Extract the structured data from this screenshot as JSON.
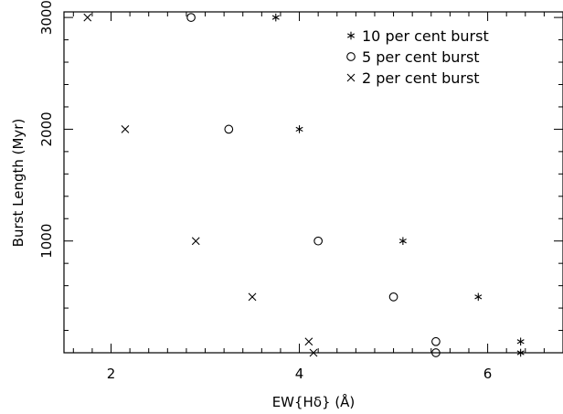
{
  "chart_data": {
    "type": "scatter",
    "xlabel": "EW{Hδ} (Å)",
    "ylabel": "Burst Length (Myr)",
    "xlim": [
      1.5,
      6.8
    ],
    "ylim": [
      0,
      3050
    ],
    "x_ticks_major": [
      2,
      4,
      6
    ],
    "x_ticks_minor_step": 0.2,
    "y_ticks_major": [
      1000,
      2000,
      3000
    ],
    "y_ticks_minor_step": 200,
    "grid": false,
    "legend_position": "top-right",
    "series": [
      {
        "name": "10 per cent burst",
        "marker": "asterisk",
        "points": [
          {
            "x": 3.75,
            "y": 3000
          },
          {
            "x": 4.0,
            "y": 2000
          },
          {
            "x": 5.1,
            "y": 1000
          },
          {
            "x": 5.9,
            "y": 500
          },
          {
            "x": 6.35,
            "y": 100
          },
          {
            "x": 6.35,
            "y": 0
          }
        ]
      },
      {
        "name": "5 per cent burst",
        "marker": "circle",
        "points": [
          {
            "x": 2.85,
            "y": 3000
          },
          {
            "x": 3.25,
            "y": 2000
          },
          {
            "x": 4.2,
            "y": 1000
          },
          {
            "x": 5.0,
            "y": 500
          },
          {
            "x": 5.45,
            "y": 100
          },
          {
            "x": 5.45,
            "y": 0
          }
        ]
      },
      {
        "name": "2 per cent burst",
        "marker": "cross",
        "points": [
          {
            "x": 1.75,
            "y": 3000
          },
          {
            "x": 2.15,
            "y": 2000
          },
          {
            "x": 2.9,
            "y": 1000
          },
          {
            "x": 3.5,
            "y": 500
          },
          {
            "x": 4.1,
            "y": 100
          },
          {
            "x": 4.15,
            "y": 0
          }
        ]
      }
    ]
  }
}
